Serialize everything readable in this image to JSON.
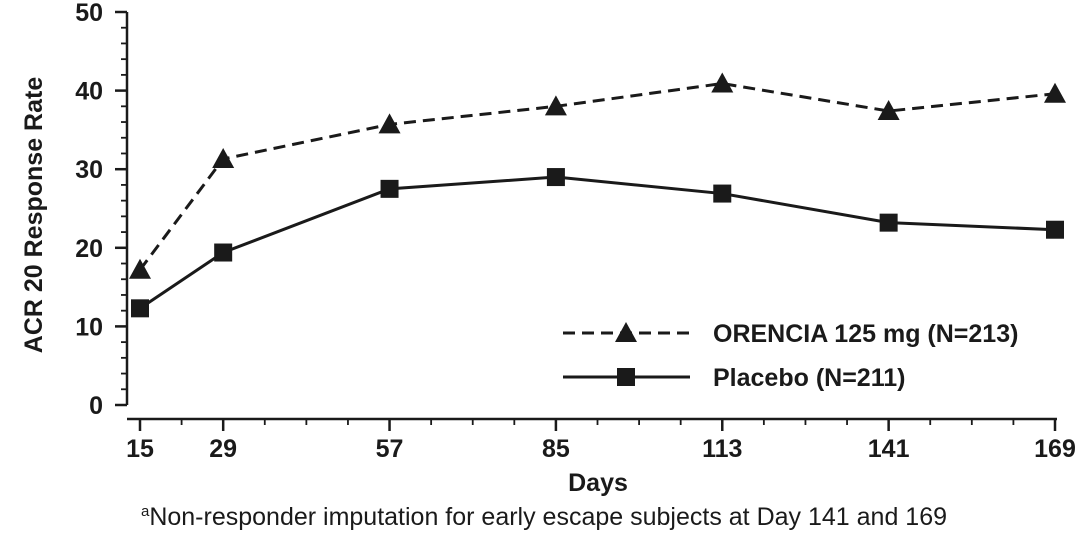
{
  "chart_data": {
    "type": "line",
    "xlabel": "Days",
    "ylabel": "ACR 20 Response Rate",
    "x": [
      15,
      29,
      57,
      85,
      113,
      141,
      169
    ],
    "xticks": [
      "15",
      "29",
      "57",
      "85",
      "113",
      "141",
      "169"
    ],
    "ylim": [
      0,
      50
    ],
    "yticks": [
      "0",
      "10",
      "20",
      "30",
      "40",
      "50"
    ],
    "grid": false,
    "legend_position": "bottom-right",
    "series": [
      {
        "name": "ORENCIA 125 mg (N=213)",
        "marker": "triangle",
        "line_style": "dashed",
        "color": "#1a1a1a",
        "values": [
          17.2,
          31.3,
          35.7,
          38.0,
          40.9,
          37.4,
          39.6
        ]
      },
      {
        "name": "Placebo (N=211)",
        "marker": "square",
        "line_style": "solid",
        "color": "#1a1a1a",
        "values": [
          12.3,
          19.4,
          27.5,
          29.0,
          26.9,
          23.2,
          22.3
        ]
      }
    ]
  },
  "footnote": {
    "marker": "a",
    "text": "Non-responder imputation for early escape subjects at Day 141 and 169"
  }
}
